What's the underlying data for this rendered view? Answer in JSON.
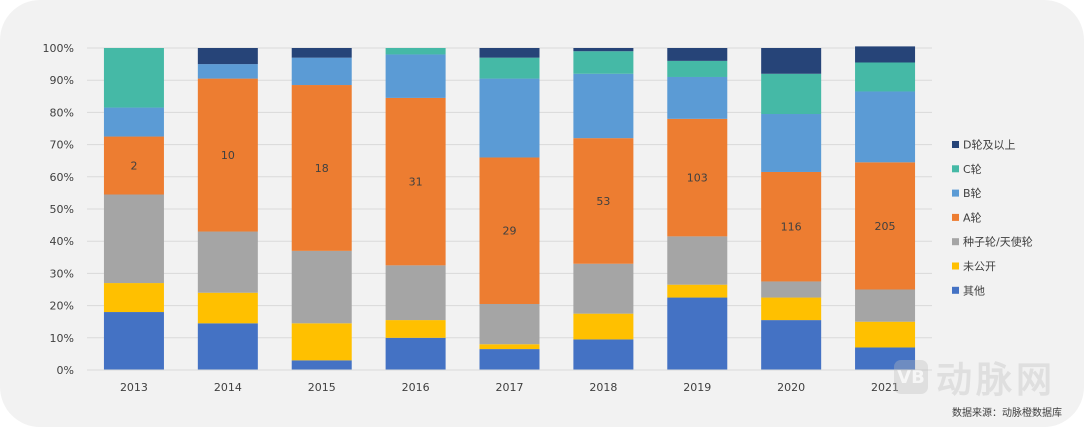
{
  "chart_data": {
    "type": "bar",
    "stacked": true,
    "percent": true,
    "categories": [
      "2013",
      "2014",
      "2015",
      "2016",
      "2017",
      "2018",
      "2019",
      "2020",
      "2021"
    ],
    "y_ticks": [
      "0%",
      "10%",
      "20%",
      "30%",
      "40%",
      "50%",
      "60%",
      "70%",
      "80%",
      "90%",
      "100%"
    ],
    "ylim": [
      0,
      100
    ],
    "series": [
      {
        "name": "其他",
        "color": "#4472c4",
        "values": [
          18,
          14.5,
          3,
          10,
          6.5,
          9.5,
          22.5,
          15.5,
          7
        ]
      },
      {
        "name": "未公开",
        "color": "#ffc000",
        "values": [
          9,
          9.5,
          11.5,
          5.5,
          1.5,
          8,
          4,
          7,
          8
        ]
      },
      {
        "name": "种子轮/天使轮",
        "color": "#a5a5a5",
        "values": [
          27.5,
          19,
          22.5,
          17,
          12.5,
          15.5,
          15,
          5,
          10
        ]
      },
      {
        "name": "A轮",
        "color": "#ed7d31",
        "values": [
          18,
          47.5,
          51.5,
          52,
          45.5,
          39,
          36.5,
          34,
          39.5
        ],
        "labels": [
          "2",
          "10",
          "18",
          "31",
          "29",
          "53",
          "103",
          "116",
          "205"
        ]
      },
      {
        "name": "B轮",
        "color": "#5b9bd5",
        "values": [
          9,
          4.5,
          8.5,
          13.5,
          24.5,
          20,
          13,
          18,
          22
        ]
      },
      {
        "name": "C轮",
        "color": "#45b9a6",
        "values": [
          18.5,
          0,
          0,
          2,
          6.5,
          7,
          5,
          12.5,
          9
        ]
      },
      {
        "name": "D轮及以上",
        "color": "#264478",
        "values": [
          0,
          5,
          3,
          0,
          3,
          1,
          4,
          8,
          5
        ]
      }
    ],
    "legend_order": [
      "D轮及以上",
      "C轮",
      "B轮",
      "A轮",
      "种子轮/天使轮",
      "未公开",
      "其他"
    ],
    "legend_position": "right",
    "grid": true
  },
  "source_text": "数据来源：动脉橙数据库",
  "watermark": {
    "logo": "VB",
    "text": "动脉网"
  }
}
